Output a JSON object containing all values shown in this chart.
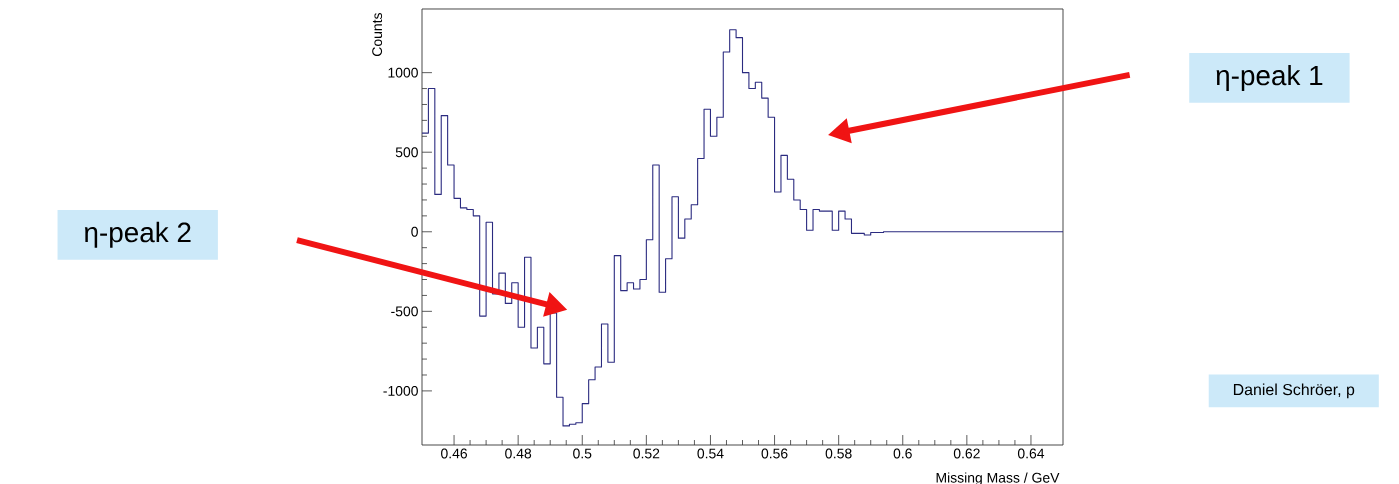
{
  "chart_data": {
    "type": "histogram",
    "xlabel": "Missing Mass / GeV",
    "ylabel": "Counts",
    "color": "#2b2b80",
    "bins": [
      0.45,
      0.452,
      0.454,
      0.456,
      0.458,
      0.46,
      0.462,
      0.464,
      0.466,
      0.468,
      0.47,
      0.472,
      0.474,
      0.476,
      0.478,
      0.48,
      0.482,
      0.484,
      0.486,
      0.488,
      0.49,
      0.492,
      0.494,
      0.496,
      0.498,
      0.5,
      0.502,
      0.504,
      0.506,
      0.508,
      0.51,
      0.512,
      0.514,
      0.516,
      0.518,
      0.52,
      0.522,
      0.524,
      0.526,
      0.528,
      0.53,
      0.532,
      0.534,
      0.536,
      0.538,
      0.54,
      0.542,
      0.544,
      0.546,
      0.548,
      0.55,
      0.552,
      0.554,
      0.556,
      0.558,
      0.56,
      0.562,
      0.564,
      0.566,
      0.568,
      0.57,
      0.572,
      0.574,
      0.576,
      0.578,
      0.58,
      0.582,
      0.584,
      0.586,
      0.588,
      0.59,
      0.592,
      0.594,
      0.596,
      0.598,
      0.6,
      0.602,
      0.604,
      0.606,
      0.608,
      0.61,
      0.612,
      0.614,
      0.616,
      0.618,
      0.62,
      0.622,
      0.624,
      0.626,
      0.628,
      0.63,
      0.632,
      0.634,
      0.636,
      0.638,
      0.64,
      0.642,
      0.644,
      0.646,
      0.648,
      0.65
    ],
    "values": [
      620,
      900,
      235,
      730,
      420,
      210,
      150,
      140,
      100,
      -530,
      60,
      -390,
      -260,
      -450,
      -320,
      -600,
      -160,
      -730,
      -600,
      -830,
      -510,
      -1040,
      -1220,
      -1210,
      -1200,
      -1080,
      -930,
      -850,
      -580,
      -820,
      -150,
      -370,
      -320,
      -360,
      -300,
      -50,
      420,
      -380,
      -170,
      220,
      -40,
      80,
      170,
      460,
      770,
      600,
      720,
      1130,
      1270,
      1220,
      1000,
      900,
      940,
      840,
      720,
      250,
      480,
      330,
      200,
      140,
      10,
      140,
      130,
      130,
      10,
      130,
      80,
      -10,
      -10,
      -20,
      -5,
      -5,
      0,
      0,
      0,
      0,
      0,
      0,
      0,
      0,
      0,
      0,
      0,
      0,
      0,
      0,
      0,
      0,
      0,
      0,
      0,
      0,
      0,
      0,
      0,
      0,
      0,
      0,
      0,
      0
    ],
    "xlim": [
      0.45,
      0.65
    ],
    "ylim": [
      -1340,
      1400
    ],
    "xticks": [
      0.46,
      0.48,
      0.5,
      0.52,
      0.54,
      0.56,
      0.58,
      0.6,
      0.62,
      0.64
    ],
    "yticks": [
      -1000,
      -500,
      0,
      500,
      1000
    ],
    "annotations": [
      "η-peak 1",
      "η-peak 2",
      "Daniel Schröer, p"
    ]
  }
}
